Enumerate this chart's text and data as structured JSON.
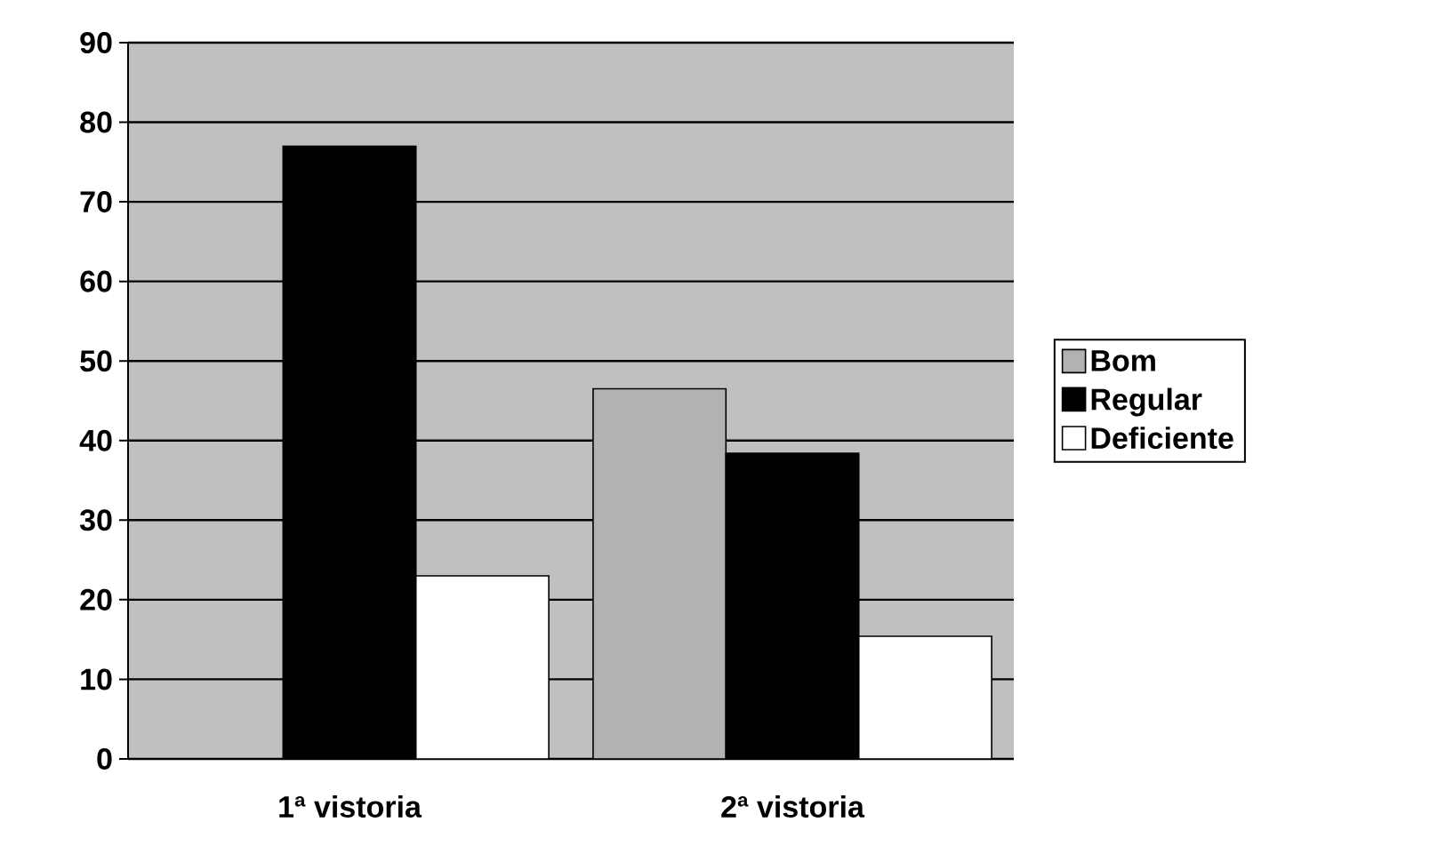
{
  "chart_data": {
    "type": "bar",
    "categories": [
      "1ª vistoria",
      "2ª vistoria"
    ],
    "series": [
      {
        "name": "Bom",
        "color": "#b2b2b2",
        "values": [
          null,
          46.5
        ]
      },
      {
        "name": "Regular",
        "color": "#000000",
        "values": [
          77,
          38.4
        ]
      },
      {
        "name": "Deficiente",
        "color": "#ffffff",
        "values": [
          23,
          15.4
        ]
      }
    ],
    "ylim": [
      0,
      90
    ],
    "yticks": [
      0,
      10,
      20,
      30,
      40,
      50,
      60,
      70,
      80,
      90
    ],
    "grid": "y",
    "legend": "right"
  }
}
